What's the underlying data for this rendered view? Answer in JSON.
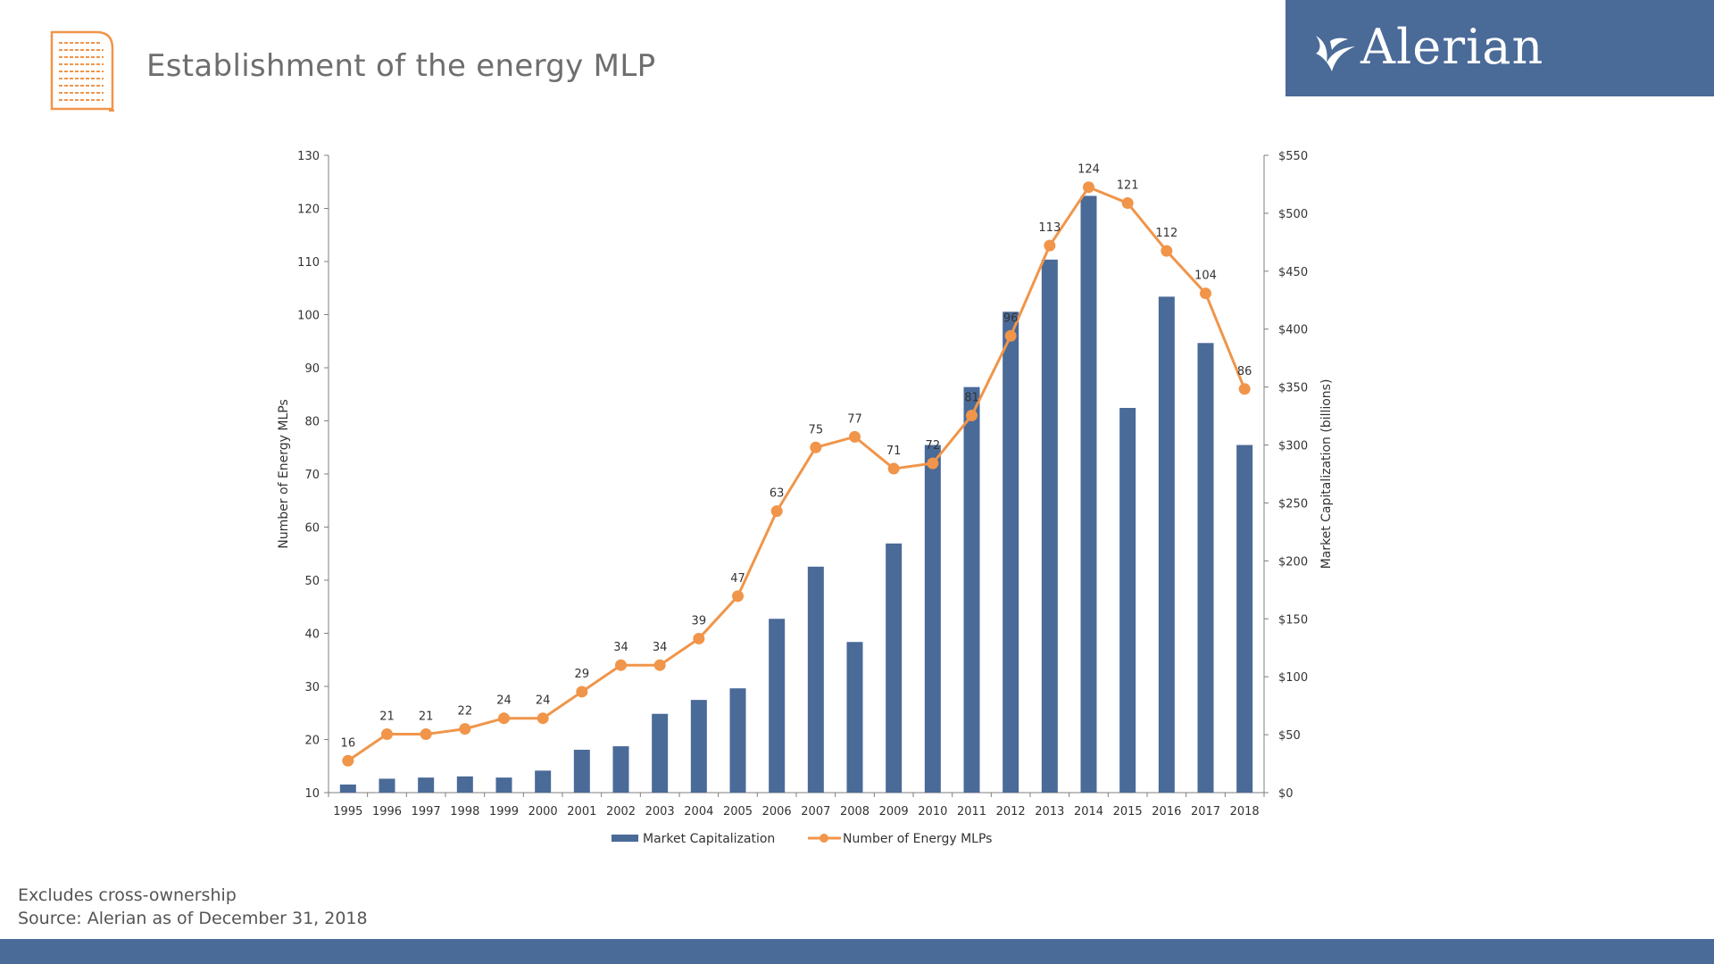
{
  "header": {
    "title": "Establishment of the energy MLP",
    "brand": "Alerian"
  },
  "colors": {
    "bar": "#4a6a98",
    "line": "#f0954a",
    "icon": "#f0954a",
    "brand_bg": "#4a6a98"
  },
  "icons": {
    "doc": "document-icon",
    "brand": "alerian-logo-icon"
  },
  "footnotes": {
    "line1": "Excludes cross-ownership",
    "line2": "Source: Alerian as of December 31, 2018"
  },
  "chart_data": {
    "type": "bar",
    "title": "",
    "xlabel": "",
    "categories": [
      "1995",
      "1996",
      "1997",
      "1998",
      "1999",
      "2000",
      "2001",
      "2002",
      "2003",
      "2004",
      "2005",
      "2006",
      "2007",
      "2008",
      "2009",
      "2010",
      "2011",
      "2012",
      "2013",
      "2014",
      "2015",
      "2016",
      "2017",
      "2018"
    ],
    "series": [
      {
        "name": "Market Capitalization",
        "type": "bar",
        "axis": "right",
        "values": [
          7,
          12,
          13,
          14,
          13,
          19,
          37,
          40,
          68,
          80,
          90,
          150,
          195,
          130,
          215,
          300,
          350,
          415,
          460,
          515,
          332,
          428,
          388,
          300
        ]
      },
      {
        "name": "Number of Energy MLPs",
        "type": "line",
        "axis": "left",
        "values": [
          16,
          21,
          21,
          22,
          24,
          24,
          29,
          34,
          34,
          39,
          47,
          63,
          75,
          77,
          71,
          72,
          81,
          96,
          113,
          124,
          121,
          112,
          104,
          86
        ]
      }
    ],
    "y_left": {
      "label": "Number of Energy MLPs",
      "range": [
        10,
        130
      ],
      "ticks": [
        10,
        20,
        30,
        40,
        50,
        60,
        70,
        80,
        90,
        100,
        110,
        120,
        130
      ]
    },
    "y_right": {
      "label": "Market Capitalization (billions)",
      "range": [
        0,
        550
      ],
      "ticks": [
        "$0",
        "$50",
        "$100",
        "$150",
        "$200",
        "$250",
        "$300",
        "$350",
        "$400",
        "$450",
        "$500",
        "$550"
      ]
    },
    "legend": {
      "position": "bottom"
    },
    "grid": false
  }
}
